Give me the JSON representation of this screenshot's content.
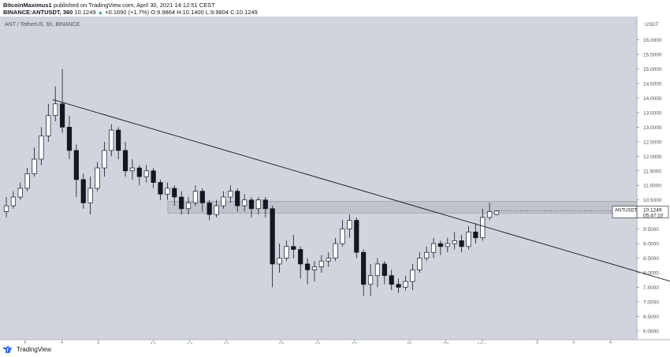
{
  "header": {
    "author": "BitcoinMaximus1",
    "published_text": "published on TradingView.com, April 30, 2021 14:12:51 CEST",
    "symbol_line": "BINANCE:ANTUSDT, 360",
    "last": "10.1249",
    "change_arrow": "▲",
    "change": "+0.1690 (+1.7%)",
    "o_label": "O:",
    "o": "9.9864",
    "h_label": "H:",
    "h": "10.1400",
    "l_label": "L:",
    "l": "9.9804",
    "c_label": "C:",
    "c": "10.1249"
  },
  "chart_data": {
    "type": "candlestick",
    "title": "ANT / TetherUS, 6h, BINANCE",
    "currency_label": "USDT",
    "ylim": [
      5.7,
      16.8
    ],
    "y_ticks": [
      "6.0000",
      "6.5000",
      "7.0000",
      "7.5000",
      "8.0000",
      "8.5000",
      "9.0000",
      "9.5000",
      "10.0000",
      "10.5000",
      "11.0000",
      "11.5000",
      "12.0000",
      "12.5000",
      "13.0000",
      "13.5000",
      "14.0000",
      "14.5000",
      "15.0000",
      "15.5000",
      "16.0000"
    ],
    "x_ticks": [
      "5",
      "7",
      "9",
      "12",
      "14",
      "16",
      "19",
      "21",
      "23",
      "26",
      "28",
      "May",
      "3",
      "5",
      "7"
    ],
    "resistance_zone": [
      10.05,
      10.45
    ],
    "trendline": {
      "start": {
        "day": 6.5,
        "price": 13.95
      },
      "end": {
        "day": 42.2,
        "price": 7.35
      }
    },
    "price_tag": {
      "symbol": "ANTUSDT",
      "price": "10.1249",
      "countdown": "05:47:10"
    },
    "colors": {
      "bg": "#d1d4dc",
      "up": "#ffffff",
      "down": "#131722",
      "zone": "#b2b5be",
      "line": "#131722"
    },
    "candles": [
      [
        10.1,
        10.3,
        9.9,
        10.6
      ],
      [
        10.3,
        10.6,
        10.2,
        10.8
      ],
      [
        10.6,
        10.9,
        10.5,
        11.1
      ],
      [
        10.9,
        11.4,
        10.8,
        11.6
      ],
      [
        11.4,
        11.9,
        11.3,
        12.3
      ],
      [
        11.9,
        12.7,
        11.7,
        13.0
      ],
      [
        12.7,
        13.4,
        12.5,
        13.8
      ],
      [
        13.4,
        13.8,
        13.2,
        14.4
      ],
      [
        13.8,
        13.0,
        12.8,
        15.0
      ],
      [
        13.0,
        12.2,
        11.9,
        13.4
      ],
      [
        12.2,
        11.2,
        10.6,
        12.4
      ],
      [
        11.2,
        10.4,
        10.2,
        11.4
      ],
      [
        10.4,
        10.9,
        10.0,
        11.3
      ],
      [
        10.9,
        11.6,
        10.8,
        11.8
      ],
      [
        11.6,
        12.2,
        11.3,
        12.5
      ],
      [
        12.2,
        12.9,
        12.0,
        13.1
      ],
      [
        12.9,
        12.2,
        11.9,
        13.0
      ],
      [
        12.2,
        11.5,
        11.3,
        12.5
      ],
      [
        11.5,
        11.6,
        11.2,
        11.9
      ],
      [
        11.6,
        11.3,
        11.0,
        11.7
      ],
      [
        11.3,
        11.5,
        11.1,
        11.7
      ],
      [
        11.5,
        11.1,
        10.9,
        11.6
      ],
      [
        11.1,
        10.7,
        10.5,
        11.2
      ],
      [
        10.7,
        10.9,
        10.5,
        11.1
      ],
      [
        10.9,
        10.6,
        10.3,
        11.0
      ],
      [
        10.6,
        10.2,
        10.0,
        10.8
      ],
      [
        10.2,
        10.4,
        10.0,
        10.6
      ],
      [
        10.4,
        10.8,
        10.3,
        11.0
      ],
      [
        10.8,
        10.4,
        10.1,
        10.9
      ],
      [
        10.4,
        10.0,
        9.8,
        10.5
      ],
      [
        10.0,
        10.3,
        9.9,
        10.5
      ],
      [
        10.3,
        10.6,
        10.2,
        10.8
      ],
      [
        10.6,
        10.8,
        10.4,
        11.0
      ],
      [
        10.8,
        10.3,
        10.1,
        10.9
      ],
      [
        10.3,
        10.5,
        10.1,
        10.7
      ],
      [
        10.5,
        10.2,
        9.9,
        10.6
      ],
      [
        10.2,
        10.5,
        10.0,
        10.6
      ],
      [
        10.5,
        10.2,
        9.9,
        10.6
      ],
      [
        10.2,
        8.3,
        7.5,
        10.3
      ],
      [
        8.3,
        8.5,
        8.0,
        9.0
      ],
      [
        8.5,
        8.9,
        8.4,
        9.1
      ],
      [
        8.9,
        8.8,
        8.5,
        9.3
      ],
      [
        8.8,
        8.3,
        7.8,
        8.9
      ],
      [
        8.3,
        8.1,
        7.6,
        8.5
      ],
      [
        8.1,
        8.2,
        7.7,
        8.4
      ],
      [
        8.2,
        8.4,
        8.0,
        8.6
      ],
      [
        8.4,
        8.5,
        8.2,
        8.7
      ],
      [
        8.5,
        9.0,
        8.4,
        9.2
      ],
      [
        9.0,
        9.5,
        8.9,
        9.8
      ],
      [
        9.5,
        9.8,
        9.2,
        10.0
      ],
      [
        9.8,
        8.7,
        8.5,
        9.9
      ],
      [
        8.7,
        7.6,
        7.2,
        8.8
      ],
      [
        7.6,
        7.9,
        7.2,
        8.3
      ],
      [
        7.9,
        8.3,
        7.5,
        8.5
      ],
      [
        8.3,
        7.9,
        7.6,
        8.4
      ],
      [
        7.9,
        7.6,
        7.4,
        8.1
      ],
      [
        7.6,
        7.5,
        7.3,
        7.8
      ],
      [
        7.5,
        7.7,
        7.4,
        7.9
      ],
      [
        7.7,
        8.1,
        7.4,
        8.3
      ],
      [
        8.1,
        8.5,
        8.0,
        8.7
      ],
      [
        8.5,
        8.7,
        8.4,
        8.9
      ],
      [
        8.7,
        9.0,
        8.5,
        9.2
      ],
      [
        9.0,
        8.9,
        8.6,
        9.1
      ],
      [
        8.9,
        9.0,
        8.7,
        9.2
      ],
      [
        9.0,
        9.1,
        8.8,
        9.4
      ],
      [
        9.1,
        8.9,
        8.7,
        9.3
      ],
      [
        8.9,
        9.4,
        8.8,
        9.6
      ],
      [
        9.4,
        9.2,
        9.0,
        9.7
      ],
      [
        9.2,
        9.9,
        9.1,
        10.2
      ],
      [
        9.9,
        10.1,
        9.8,
        10.4
      ],
      [
        10.0,
        10.12,
        9.98,
        10.14
      ]
    ]
  }
}
